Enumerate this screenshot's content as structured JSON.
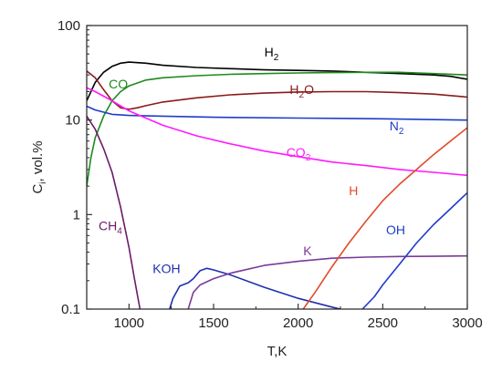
{
  "chart_data": {
    "type": "line",
    "xlabel": "T,K",
    "ylabel": {
      "main": "C",
      "sub": "i",
      "rest": ", vol.%"
    },
    "xlim": [
      750,
      3000
    ],
    "ylim": [
      0.1,
      100
    ],
    "yscale": "log",
    "grid": false,
    "legend": "none (inline labels)",
    "x_ticks": [
      {
        "value": 1000,
        "label": "1000"
      },
      {
        "value": 1500,
        "label": "1500"
      },
      {
        "value": 2000,
        "label": "2000"
      },
      {
        "value": 2500,
        "label": "2500"
      },
      {
        "value": 3000,
        "label": "3000"
      }
    ],
    "y_ticks": [
      {
        "value": 0.1,
        "label": "0.1"
      },
      {
        "value": 1,
        "label": "1"
      },
      {
        "value": 10,
        "label": "10"
      },
      {
        "value": 100,
        "label": "100"
      }
    ],
    "series": [
      {
        "name": "H2",
        "label": {
          "main": "H",
          "sub": "2",
          "x": 1800,
          "y": 47
        },
        "color": "#000000",
        "x": [
          750,
          800,
          850,
          900,
          950,
          1000,
          1100,
          1200,
          1400,
          1600,
          1800,
          2000,
          2200,
          2400,
          2600,
          2800,
          2900,
          3000
        ],
        "y": [
          16,
          25,
          32,
          37,
          40,
          41,
          40,
          38,
          36,
          35,
          34,
          33.5,
          33,
          32,
          31,
          30,
          29,
          27
        ]
      },
      {
        "name": "CO",
        "label": {
          "main": "CO",
          "sub": "",
          "x": 880,
          "y": 21.5
        },
        "color": "#1e8a1e",
        "x": [
          750,
          775,
          800,
          850,
          900,
          950,
          1000,
          1100,
          1200,
          1400,
          1600,
          1800,
          2000,
          2200,
          2400,
          2600,
          2800,
          3000
        ],
        "y": [
          2,
          4,
          6.5,
          11,
          16,
          20,
          23,
          26.5,
          28,
          29.5,
          30.5,
          31,
          31.5,
          31.8,
          32,
          32,
          31,
          30
        ]
      },
      {
        "name": "H2O",
        "label": {
          "main": "H",
          "sub": "2",
          "rest": "O",
          "x": 1950,
          "y": 19
        },
        "color": "#8b1a1a",
        "x": [
          750,
          800,
          850,
          900,
          950,
          1000,
          1050,
          1100,
          1200,
          1400,
          1600,
          1800,
          2000,
          2200,
          2400,
          2600,
          2800,
          3000
        ],
        "y": [
          33,
          28,
          21,
          16,
          13.5,
          13,
          13.5,
          14.2,
          15.5,
          17.2,
          18.5,
          19.3,
          19.8,
          20,
          20,
          19.5,
          18.8,
          17.5
        ]
      },
      {
        "name": "N2",
        "label": {
          "main": "N",
          "sub": "2",
          "x": 2540,
          "y": 7.8
        },
        "color": "#1f3cc9",
        "x": [
          750,
          800,
          900,
          1000,
          1200,
          1500,
          2000,
          2500,
          3000
        ],
        "y": [
          14,
          12.8,
          11.5,
          11.2,
          11,
          10.7,
          10.5,
          10.3,
          10
        ]
      },
      {
        "name": "CO2",
        "label": {
          "main": "CO",
          "sub": "2",
          "x": 1930,
          "y": 4.1
        },
        "color": "#ff1aff",
        "x": [
          750,
          800,
          900,
          1000,
          1200,
          1400,
          1600,
          1800,
          2000,
          2200,
          2400,
          2600,
          2800,
          3000
        ],
        "y": [
          22,
          20,
          16,
          12.5,
          8.8,
          6.8,
          5.6,
          4.7,
          4.1,
          3.6,
          3.3,
          3.0,
          2.8,
          2.6
        ]
      },
      {
        "name": "CH4",
        "label": {
          "main": "CH",
          "sub": "4",
          "x": 820,
          "y": 0.68
        },
        "color": "#6a1b6a",
        "x": [
          750,
          800,
          850,
          900,
          950,
          1000,
          1030,
          1050,
          1065
        ],
        "y": [
          11,
          8,
          5,
          2.8,
          1.2,
          0.45,
          0.22,
          0.14,
          0.1
        ]
      },
      {
        "name": "KOH",
        "label": {
          "main": "KOH",
          "sub": "",
          "x": 1140,
          "y": 0.24
        },
        "color": "#1f2fb0",
        "x": [
          1240,
          1260,
          1300,
          1350,
          1380,
          1420,
          1460,
          1500,
          1600,
          1800,
          2000,
          2200,
          2250
        ],
        "y": [
          0.1,
          0.13,
          0.175,
          0.19,
          0.21,
          0.255,
          0.27,
          0.26,
          0.23,
          0.17,
          0.13,
          0.105,
          0.1
        ]
      },
      {
        "name": "K",
        "label": {
          "main": "K",
          "sub": "",
          "x": 2030,
          "y": 0.37
        },
        "color": "#7a3a9a",
        "x": [
          1350,
          1380,
          1420,
          1500,
          1600,
          1800,
          2000,
          2200,
          2400,
          2600,
          2800,
          3000
        ],
        "y": [
          0.1,
          0.15,
          0.18,
          0.21,
          0.24,
          0.29,
          0.32,
          0.345,
          0.355,
          0.36,
          0.362,
          0.365
        ]
      },
      {
        "name": "H",
        "label": {
          "main": "H",
          "sub": "",
          "x": 2300,
          "y": 1.6
        },
        "color": "#e14a2a",
        "x": [
          2030,
          2100,
          2200,
          2300,
          2400,
          2500,
          2600,
          2700,
          2800,
          2900,
          3000
        ],
        "y": [
          0.1,
          0.15,
          0.28,
          0.5,
          0.85,
          1.4,
          2.1,
          3.0,
          4.3,
          6.0,
          8.3
        ]
      },
      {
        "name": "OH",
        "label": {
          "main": "OH",
          "sub": "",
          "x": 2520,
          "y": 0.62
        },
        "color": "#1f3cc9",
        "x": [
          2380,
          2450,
          2500,
          2600,
          2700,
          2800,
          2900,
          3000
        ],
        "y": [
          0.1,
          0.135,
          0.18,
          0.3,
          0.5,
          0.78,
          1.15,
          1.7
        ]
      }
    ]
  }
}
